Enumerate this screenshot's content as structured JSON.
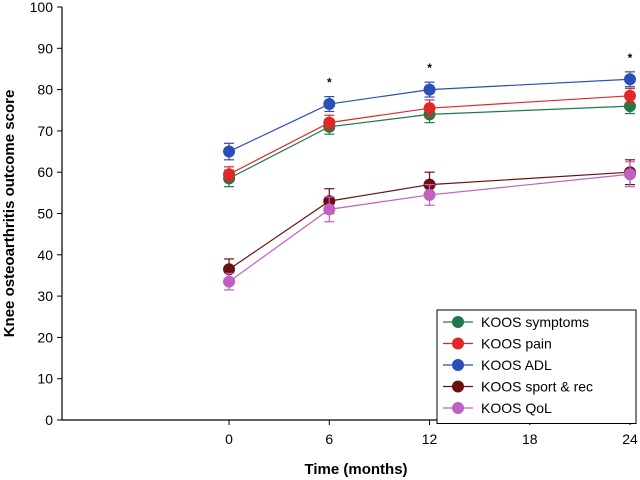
{
  "chart_data": {
    "type": "line",
    "title": "",
    "xlabel": "Time (months)",
    "ylabel": "Knee osteoarthritis outcome score",
    "xlim": [
      -10,
      24
    ],
    "ylim": [
      0,
      100
    ],
    "x_ticks": [
      0,
      6,
      12,
      18,
      24
    ],
    "y_ticks": [
      0,
      10,
      20,
      30,
      40,
      50,
      60,
      70,
      80,
      90,
      100
    ],
    "grid": false,
    "legend_position": "bottom-right",
    "significance": [
      {
        "x": 6,
        "label": "*"
      },
      {
        "x": 12,
        "label": "*"
      },
      {
        "x": 24,
        "label": "*"
      }
    ],
    "series": [
      {
        "name": "KOOS symptoms",
        "color": "#1e7a4a",
        "x": [
          0,
          6,
          12,
          24
        ],
        "values": [
          58.5,
          71,
          74,
          76
        ],
        "errors": [
          2,
          1.8,
          2,
          1.8
        ]
      },
      {
        "name": "KOOS pain",
        "color": "#e02828",
        "x": [
          0,
          6,
          12,
          24
        ],
        "values": [
          59.5,
          72,
          75.5,
          78.5
        ],
        "errors": [
          1.8,
          1.8,
          2,
          1.8
        ]
      },
      {
        "name": "KOOS ADL",
        "color": "#2a4fb8",
        "x": [
          0,
          6,
          12,
          24
        ],
        "values": [
          65,
          76.5,
          80,
          82.5
        ],
        "errors": [
          2,
          1.8,
          1.8,
          1.8
        ]
      },
      {
        "name": "KOOS sport & rec",
        "color": "#6b1010",
        "x": [
          0,
          6,
          12,
          24
        ],
        "values": [
          36.5,
          53,
          57,
          60
        ],
        "errors": [
          2.5,
          3,
          3,
          3
        ]
      },
      {
        "name": "KOOS QoL",
        "color": "#c060c0",
        "x": [
          0,
          6,
          12,
          24
        ],
        "values": [
          33.5,
          51,
          54.5,
          59.5
        ],
        "errors": [
          2,
          3,
          2.5,
          3
        ]
      }
    ]
  }
}
